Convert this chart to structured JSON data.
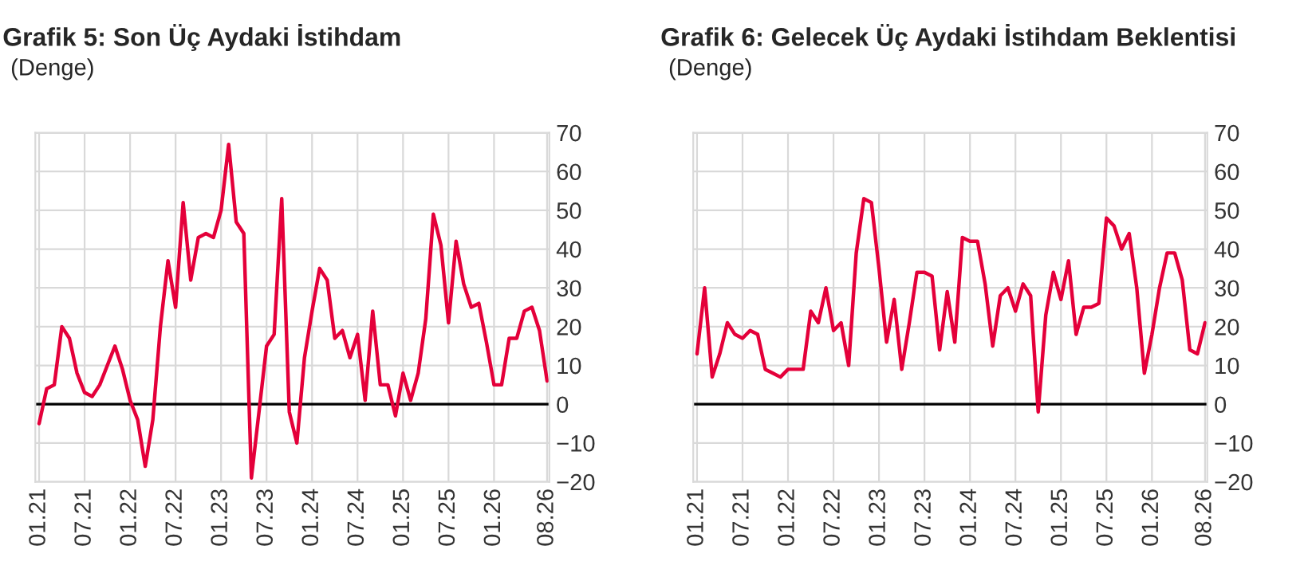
{
  "chart_data": [
    {
      "type": "line",
      "title": "Grafik 5: Son Üç Aydaki İstihdam",
      "subtitle": "(Denge)",
      "categories": [
        "01.21",
        null,
        null,
        null,
        null,
        null,
        "07.21",
        null,
        null,
        null,
        null,
        null,
        "01.22",
        null,
        null,
        null,
        null,
        null,
        "07.22",
        null,
        null,
        null,
        null,
        null,
        "01.23",
        null,
        null,
        null,
        null,
        null,
        "07.23",
        null,
        null,
        null,
        null,
        null,
        "01.24",
        null,
        null,
        null,
        null,
        null,
        "07.24",
        null,
        null,
        null,
        null,
        null,
        "01.25",
        null,
        null,
        null,
        null,
        null,
        "07.25",
        null,
        null,
        null,
        null,
        null,
        "01.26",
        null,
        null,
        null,
        null,
        null,
        null,
        "08.26"
      ],
      "series": [
        {
          "color": "#e4003a",
          "values": [
            -5,
            4,
            5,
            20,
            17,
            8,
            3,
            2,
            5,
            10,
            15,
            9,
            1,
            -4,
            -16,
            -4,
            20,
            37,
            25,
            52,
            32,
            43,
            44,
            43,
            50,
            67,
            47,
            44,
            -19,
            -2,
            15,
            18,
            53,
            -2,
            -10,
            12,
            24,
            35,
            32,
            17,
            19,
            12,
            18,
            1,
            24,
            5,
            5,
            -3,
            8,
            1,
            8,
            22,
            49,
            41,
            21,
            42,
            31,
            25,
            26,
            16,
            5,
            5,
            17,
            17,
            24,
            25,
            19,
            6
          ]
        }
      ],
      "ylim": [
        -20,
        70
      ],
      "yticks": [
        -20,
        -10,
        0,
        10,
        20,
        30,
        40,
        50,
        60,
        70
      ],
      "grid": true,
      "ref_lines": [
        {
          "axis": "y",
          "value": 0,
          "color": "#000000"
        }
      ]
    },
    {
      "type": "line",
      "title": "Grafik 6: Gelecek Üç Aydaki İstihdam Beklentisi",
      "subtitle": "(Denge)",
      "categories": [
        "01.21",
        null,
        null,
        null,
        null,
        null,
        "07.21",
        null,
        null,
        null,
        null,
        null,
        "01.22",
        null,
        null,
        null,
        null,
        null,
        "07.22",
        null,
        null,
        null,
        null,
        null,
        "01.23",
        null,
        null,
        null,
        null,
        null,
        "07.23",
        null,
        null,
        null,
        null,
        null,
        "01.24",
        null,
        null,
        null,
        null,
        null,
        "07.24",
        null,
        null,
        null,
        null,
        null,
        "01.25",
        null,
        null,
        null,
        null,
        null,
        "07.25",
        null,
        null,
        null,
        null,
        null,
        "01.26",
        null,
        null,
        null,
        null,
        null,
        null,
        "08.26"
      ],
      "series": [
        {
          "color": "#e4003a",
          "values": [
            13,
            30,
            7,
            13,
            21,
            18,
            17,
            19,
            18,
            9,
            8,
            7,
            9,
            9,
            9,
            24,
            21,
            30,
            19,
            21,
            10,
            39,
            53,
            52,
            35,
            16,
            27,
            9,
            21,
            34,
            34,
            33,
            14,
            29,
            16,
            43,
            42,
            42,
            31,
            15,
            28,
            30,
            24,
            31,
            28,
            -2,
            23,
            34,
            27,
            37,
            18,
            25,
            25,
            26,
            48,
            46,
            40,
            44,
            30,
            8,
            18,
            30,
            39,
            39,
            32,
            14,
            13,
            21
          ]
        }
      ],
      "ylim": [
        -20,
        70
      ],
      "yticks": [
        -20,
        -10,
        0,
        10,
        20,
        30,
        40,
        50,
        60,
        70
      ],
      "grid": true,
      "ref_lines": [
        {
          "axis": "y",
          "value": 0,
          "color": "#000000"
        }
      ]
    }
  ]
}
